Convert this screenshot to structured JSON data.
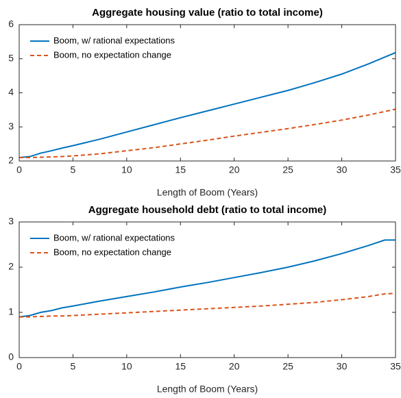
{
  "chart_data": [
    {
      "type": "line",
      "title": "Aggregate housing value (ratio to total income)",
      "x_label": "Length of Boom (Years)",
      "x": [
        0,
        1,
        2,
        3,
        4,
        5,
        7.5,
        10,
        12.5,
        15,
        17.5,
        20,
        22.5,
        25,
        27.5,
        30,
        32.5,
        35
      ],
      "series": [
        {
          "name": "Boom, w/ rational expectations",
          "color": "#0072bd",
          "dash": false,
          "values": [
            2.1,
            2.13,
            2.23,
            2.3,
            2.38,
            2.45,
            2.64,
            2.85,
            3.06,
            3.27,
            3.47,
            3.67,
            3.87,
            4.07,
            4.3,
            4.55,
            4.85,
            5.18
          ]
        },
        {
          "name": "Boom, no expectation change",
          "color": "#d95319",
          "dash": true,
          "values": [
            2.1,
            2.1,
            2.11,
            2.12,
            2.13,
            2.15,
            2.21,
            2.3,
            2.39,
            2.5,
            2.61,
            2.73,
            2.84,
            2.95,
            3.07,
            3.2,
            3.35,
            3.52
          ]
        }
      ],
      "xlim": [
        0,
        35
      ],
      "xticks": [
        0,
        5,
        10,
        15,
        20,
        25,
        30,
        35
      ],
      "ylim": [
        2,
        6
      ],
      "yticks": [
        2,
        3,
        4,
        5,
        6
      ],
      "legend": "upper left"
    },
    {
      "type": "line",
      "title": "Aggregate household debt (ratio to total income)",
      "x_label": "Length of Boom (Years)",
      "x": [
        0,
        1,
        2,
        3,
        4,
        5,
        7.5,
        10,
        12.5,
        15,
        17.5,
        20,
        22.5,
        25,
        27.5,
        30,
        32.5,
        34,
        35
      ],
      "series": [
        {
          "name": "Boom, w/ rational expectations",
          "color": "#0072bd",
          "dash": false,
          "values": [
            0.9,
            0.93,
            1.0,
            1.04,
            1.1,
            1.14,
            1.25,
            1.35,
            1.45,
            1.56,
            1.66,
            1.77,
            1.88,
            2.0,
            2.14,
            2.3,
            2.48,
            2.6,
            2.6
          ]
        },
        {
          "name": "Boom, no expectation change",
          "color": "#d95319",
          "dash": true,
          "values": [
            0.9,
            0.9,
            0.91,
            0.92,
            0.92,
            0.93,
            0.96,
            0.99,
            1.02,
            1.05,
            1.08,
            1.11,
            1.14,
            1.18,
            1.22,
            1.28,
            1.35,
            1.41,
            1.42
          ]
        }
      ],
      "xlim": [
        0,
        35
      ],
      "xticks": [
        0,
        5,
        10,
        15,
        20,
        25,
        30,
        35
      ],
      "ylim": [
        0,
        3
      ],
      "yticks": [
        0,
        1,
        2,
        3
      ],
      "legend": "upper left"
    }
  ]
}
